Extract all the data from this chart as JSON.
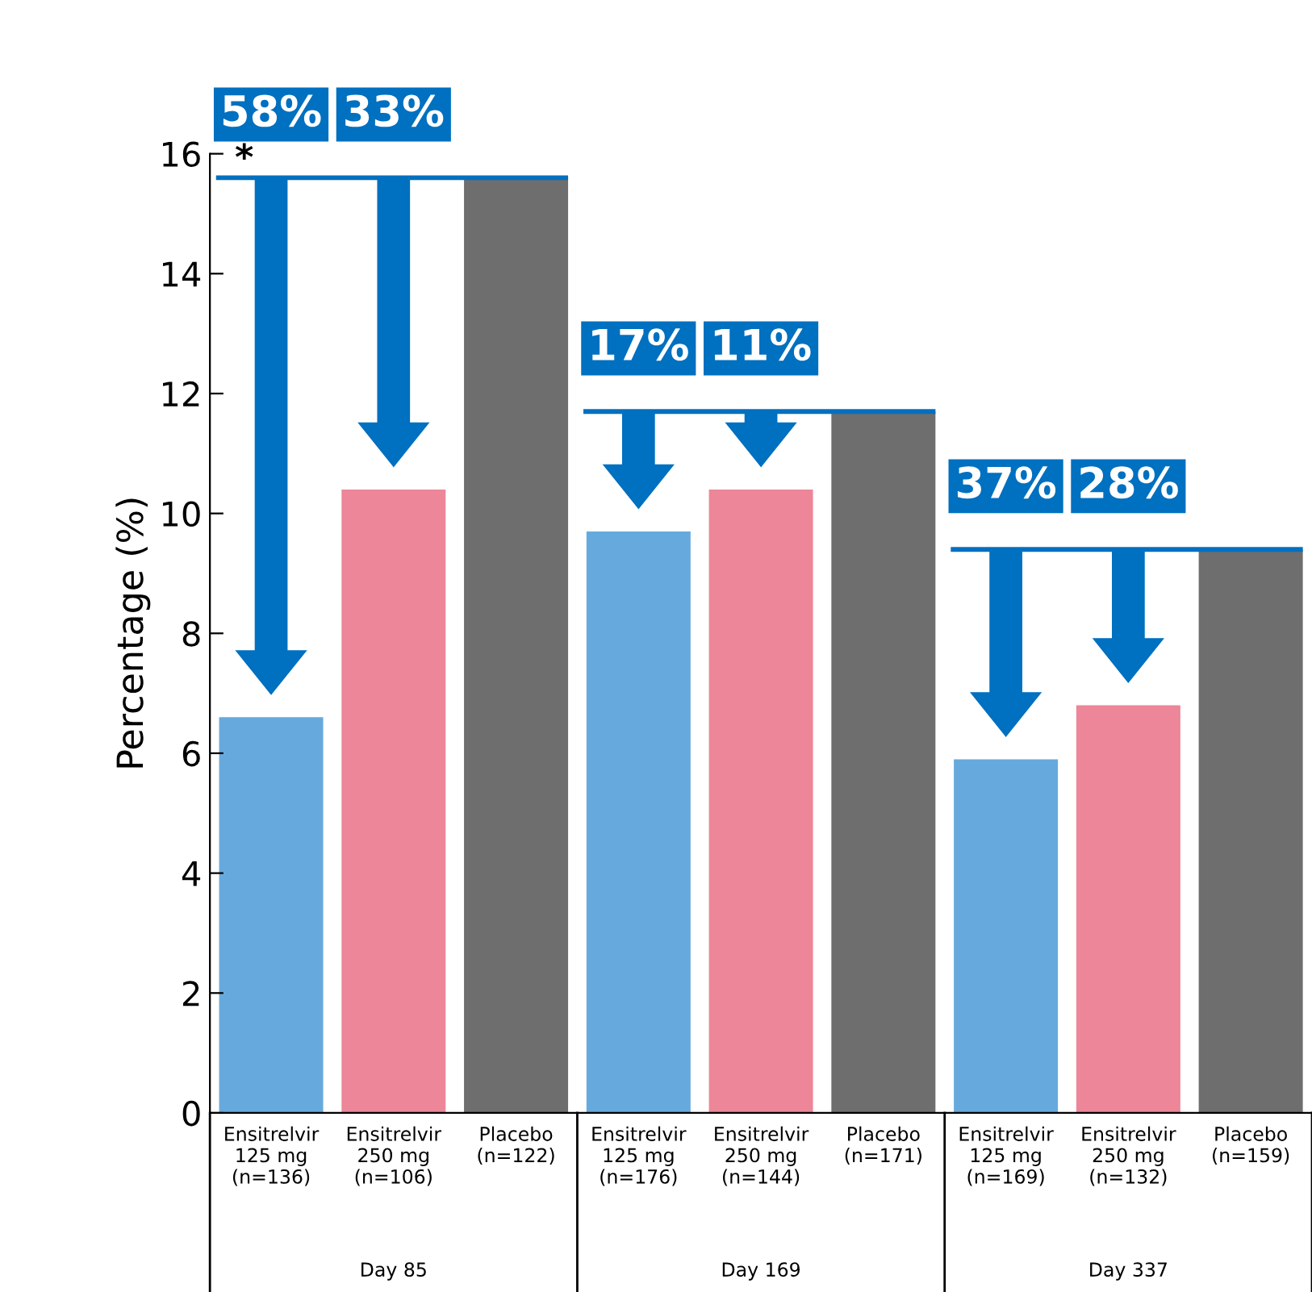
{
  "chart_data": {
    "type": "bar",
    "ylabel": "Percentage (%)",
    "categories": [
      "Ensitrelvir\n125 mg\n(n=136)",
      "Ensitrelvir\n250 mg\n(n=106)",
      "Placebo\n(n=122)",
      "Ensitrelvir\n125 mg\n(n=176)",
      "Ensitrelvir\n250 mg\n(n=144)",
      "Placebo\n(n=171)",
      "Ensitrelvir\n125 mg\n(n=169)",
      "Ensitrelvir\n250 mg\n(n=132)",
      "Placebo\n(n=159)"
    ],
    "values": [
      6.6,
      10.4,
      15.6,
      9.7,
      10.4,
      11.7,
      5.9,
      6.8,
      9.4
    ],
    "colors": [
      "#66aadd",
      "#ec8698",
      "#6e6e6e",
      "#66aadd",
      "#ec8698",
      "#6e6e6e",
      "#66aadd",
      "#ec8698",
      "#6e6e6e"
    ],
    "ylim": [
      0,
      16
    ],
    "yticks": [
      0,
      2,
      4,
      6,
      8,
      10,
      12,
      14,
      16
    ],
    "grid": false,
    "annotations": [
      "58%",
      "33%",
      "17%",
      "11%",
      "37%",
      "28%",
      "*",
      "Day 85",
      "Day 169",
      "Day 337"
    ]
  }
}
